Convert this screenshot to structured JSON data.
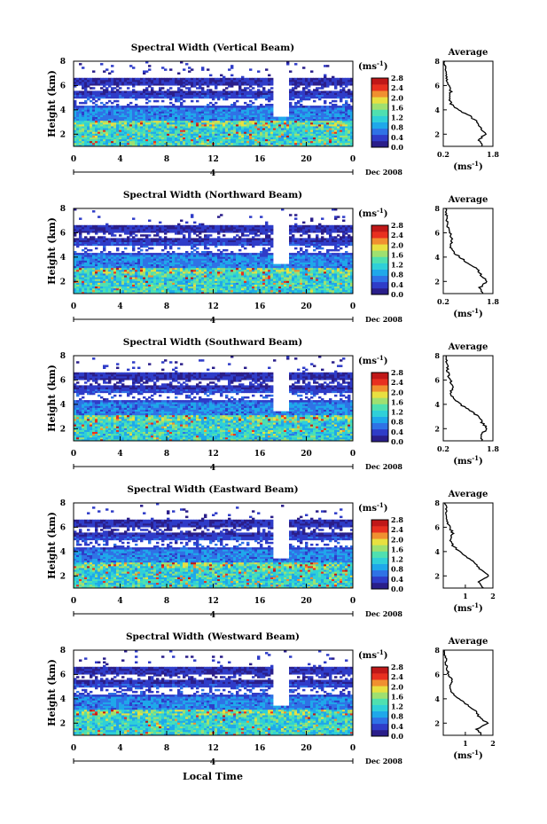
{
  "figure": {
    "date_label": "Dec 2008",
    "xlabel": "Local Time",
    "ylabel": "Height (km)",
    "unit": "(ms",
    "unit_exp": "-1",
    "avg_title": "Average",
    "day_marker": "4"
  },
  "colors": {
    "ramp": [
      "#2a1e8a",
      "#2f3cc8",
      "#2f72e6",
      "#1fa8ea",
      "#2fd0d8",
      "#4fe0b0",
      "#9fe070",
      "#e8e040",
      "#f09030",
      "#e83020",
      "#c01818"
    ],
    "background": "#ffffff",
    "frame": "#000000"
  },
  "chart_data": [
    {
      "type": "heatmap",
      "title": "Spectral Width (Vertical Beam)",
      "x_ticks": [
        "0",
        "4",
        "8",
        "12",
        "16",
        "20",
        "0"
      ],
      "xlim": [
        0,
        24
      ],
      "y_ticks": [
        "2",
        "4",
        "6",
        "8"
      ],
      "ylim": [
        1,
        8
      ],
      "colorbar_ticks": [
        "0.0",
        "0.4",
        "0.8",
        "1.2",
        "1.6",
        "2.0",
        "2.4",
        "2.8"
      ],
      "colorbar_range": [
        0.0,
        2.8
      ],
      "gap_hours": [
        17.0,
        18.3
      ],
      "average_profile": {
        "x_ticks": [
          "0.2",
          "1.8"
        ],
        "xlim": [
          0.2,
          1.8
        ],
        "y_ticks": [
          "2",
          "4",
          "6",
          "8"
        ],
        "height_km": [
          1.0,
          1.5,
          2.0,
          2.5,
          3.0,
          3.5,
          4.0,
          4.5,
          5.0,
          5.5,
          6.0,
          6.5,
          7.0,
          7.5,
          8.0
        ],
        "width": [
          1.45,
          1.35,
          1.55,
          1.4,
          1.3,
          1.05,
          0.7,
          0.45,
          0.4,
          0.45,
          0.38,
          0.32,
          0.3,
          0.28,
          0.25
        ]
      }
    },
    {
      "type": "heatmap",
      "title": "Spectral Width (Northward Beam)",
      "x_ticks": [
        "0",
        "4",
        "8",
        "12",
        "16",
        "20",
        "0"
      ],
      "xlim": [
        0,
        24
      ],
      "y_ticks": [
        "2",
        "4",
        "6",
        "8"
      ],
      "ylim": [
        1,
        8
      ],
      "colorbar_ticks": [
        "0.0",
        "0.4",
        "0.8",
        "1.2",
        "1.6",
        "2.0",
        "2.4",
        "2.8"
      ],
      "colorbar_range": [
        0.0,
        2.8
      ],
      "gap_hours": [
        17.0,
        18.3
      ],
      "average_profile": {
        "x_ticks": [
          "0.2",
          "1.8"
        ],
        "xlim": [
          0.2,
          1.8
        ],
        "y_ticks": [
          "2",
          "4",
          "6",
          "8"
        ],
        "height_km": [
          1.0,
          1.5,
          2.0,
          2.5,
          3.0,
          3.5,
          4.0,
          4.5,
          5.0,
          5.5,
          6.0,
          6.5,
          7.0,
          7.5,
          8.0
        ],
        "width": [
          1.5,
          1.38,
          1.6,
          1.42,
          1.32,
          1.0,
          0.72,
          0.5,
          0.42,
          0.5,
          0.4,
          0.35,
          0.32,
          0.3,
          0.28
        ]
      }
    },
    {
      "type": "heatmap",
      "title": "Spectral Width (Southward Beam)",
      "x_ticks": [
        "0",
        "4",
        "8",
        "12",
        "16",
        "20",
        "0"
      ],
      "xlim": [
        0,
        24
      ],
      "y_ticks": [
        "2",
        "4",
        "6",
        "8"
      ],
      "ylim": [
        1,
        8
      ],
      "colorbar_ticks": [
        "0.0",
        "0.4",
        "0.8",
        "1.2",
        "1.6",
        "2.0",
        "2.4",
        "2.8"
      ],
      "colorbar_range": [
        0.0,
        2.8
      ],
      "gap_hours": [
        17.0,
        18.3
      ],
      "average_profile": {
        "x_ticks": [
          "0.2",
          "1.8"
        ],
        "xlim": [
          0.2,
          1.8
        ],
        "y_ticks": [
          "2",
          "4",
          "6",
          "8"
        ],
        "height_km": [
          1.0,
          1.5,
          2.0,
          2.5,
          3.0,
          3.5,
          4.0,
          4.5,
          5.0,
          5.5,
          6.0,
          6.5,
          7.0,
          7.5,
          8.0
        ],
        "width": [
          1.48,
          1.4,
          1.62,
          1.45,
          1.35,
          1.05,
          0.75,
          0.52,
          0.45,
          0.52,
          0.42,
          0.36,
          0.33,
          0.3,
          0.28
        ]
      }
    },
    {
      "type": "heatmap",
      "title": "Spectral Width (Eastward Beam)",
      "x_ticks": [
        "0",
        "4",
        "8",
        "12",
        "16",
        "20",
        "0"
      ],
      "xlim": [
        0,
        24
      ],
      "y_ticks": [
        "2",
        "4",
        "6",
        "8"
      ],
      "ylim": [
        1,
        8
      ],
      "colorbar_ticks": [
        "0.0",
        "0.4",
        "0.8",
        "1.2",
        "1.6",
        "2.0",
        "2.4",
        "2.8"
      ],
      "colorbar_range": [
        0.0,
        2.8
      ],
      "gap_hours": [
        17.0,
        18.3
      ],
      "average_profile": {
        "x_ticks": [
          "1",
          "2"
        ],
        "xlim": [
          0.2,
          2.0
        ],
        "y_ticks": [
          "2",
          "4",
          "6",
          "8"
        ],
        "height_km": [
          1.0,
          1.5,
          2.0,
          2.5,
          3.0,
          3.5,
          4.0,
          4.5,
          5.0,
          5.5,
          6.0,
          6.5,
          7.0,
          7.5,
          8.0
        ],
        "width": [
          1.65,
          1.45,
          1.85,
          1.55,
          1.4,
          1.1,
          0.78,
          0.55,
          0.45,
          0.55,
          0.42,
          0.36,
          0.32,
          0.3,
          0.28
        ]
      }
    },
    {
      "type": "heatmap",
      "title": "Spectral Width (Westward Beam)",
      "x_ticks": [
        "0",
        "4",
        "8",
        "12",
        "16",
        "20",
        "0"
      ],
      "xlim": [
        0,
        24
      ],
      "y_ticks": [
        "2",
        "4",
        "6",
        "8"
      ],
      "ylim": [
        1,
        8
      ],
      "colorbar_ticks": [
        "0.0",
        "0.4",
        "0.8",
        "1.2",
        "1.6",
        "2.0",
        "2.4",
        "2.8"
      ],
      "colorbar_range": [
        0.0,
        2.8
      ],
      "gap_hours": [
        17.0,
        18.3
      ],
      "average_profile": {
        "x_ticks": [
          "1",
          "2"
        ],
        "xlim": [
          0.2,
          2.0
        ],
        "y_ticks": [
          "2",
          "4",
          "6",
          "8"
        ],
        "height_km": [
          1.0,
          1.5,
          2.0,
          2.5,
          3.0,
          3.5,
          4.0,
          4.5,
          5.0,
          5.5,
          6.0,
          6.5,
          7.0,
          7.5,
          8.0
        ],
        "width": [
          1.6,
          1.42,
          1.8,
          1.5,
          1.38,
          1.08,
          0.76,
          0.52,
          0.44,
          0.52,
          0.4,
          0.34,
          0.3,
          0.28,
          0.26
        ]
      }
    }
  ]
}
